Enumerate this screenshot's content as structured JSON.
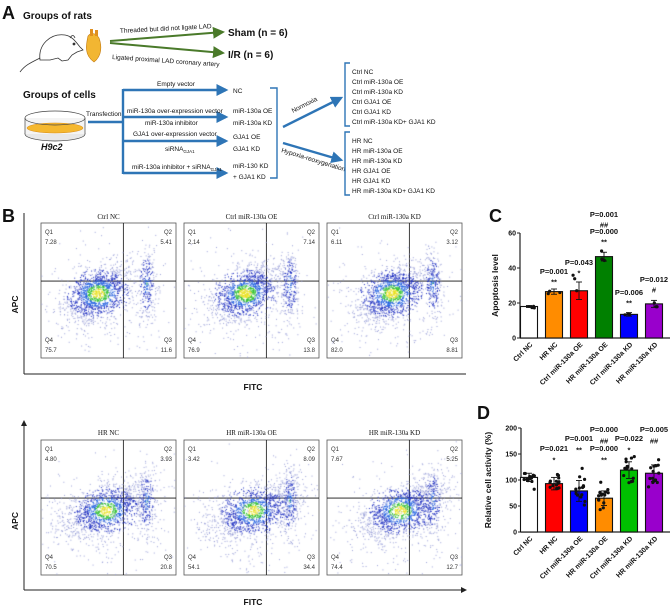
{
  "panel_labels": {
    "a": "A",
    "b": "B",
    "c": "C",
    "d": "D"
  },
  "panel_a": {
    "rats": {
      "title": "Groups of rats",
      "arrow_top": "Threaded but did not ligate LAD",
      "arrow_bottom": "Ligated proximal LAD coronary artery",
      "sham": "Sham (n = 6)",
      "ir": "I/R (n = 6)"
    },
    "cells": {
      "title": "Groups of cells",
      "dish_label": "H9c2",
      "transfection": "Transfection",
      "branches": [
        {
          "above": "Empty vector",
          "targets": [
            "NC"
          ]
        },
        {
          "above": "miR-130a over-expression vector",
          "below": "miR-130a inhibitor",
          "targets": [
            "miR-130a OE",
            "miR-130a KD"
          ]
        },
        {
          "above": "GJA1 over-expression vector",
          "below": "siRNA",
          "below_sub": "GJA1",
          "targets": [
            "GJA1 OE",
            "GJA1 KD"
          ]
        },
        {
          "above": "miR-130a inhibitor + siRNA",
          "above_sub": "GJA1",
          "targets": [
            "miR-130 KD",
            "+ GJA1 KD"
          ]
        }
      ],
      "normoxia": "Normoxia",
      "hypoxia": "Hypoxia-reoxygenation",
      "ctrl_groups": [
        "Ctrl NC",
        "Ctrl miR-130a OE",
        "Ctrl miR-130a KD",
        "Ctrl GJA1 OE",
        "Ctrl GJA1 KD",
        "Ctrl miR-130a KD+ GJA1 KD"
      ],
      "hr_groups": [
        "HR NC",
        "HR miR-130a OE",
        "HR miR-130a KD",
        "HR GJA1 OE",
        "HR GJA1 KD",
        "HR miR-130a KD+ GJA1 KD"
      ]
    },
    "colors": {
      "rat_arrow": "#4a7a2a",
      "cell_arrow": "#2e75b6"
    }
  },
  "panel_b": {
    "y_label": "APC",
    "x_label": "FITC",
    "quadrant_names": [
      "Q1",
      "Q2",
      "Q3",
      "Q4"
    ],
    "rows": [
      {
        "plots": [
          {
            "title": "Ctrl NC",
            "q1": "7.28",
            "q2": "5.41",
            "q3": "11.6",
            "q4": "75.7"
          },
          {
            "title": "Ctrl miR-130a OE",
            "q1": "2.14",
            "q2": "7.14",
            "q3": "13.8",
            "q4": "76.9"
          },
          {
            "title": "Ctrl miR-130a KD",
            "q1": "6.11",
            "q2": "3.12",
            "q3": "8.81",
            "q4": "82.0"
          }
        ]
      },
      {
        "plots": [
          {
            "title": "HR NC",
            "q1": "4.80",
            "q2": "3.93",
            "q3": "20.8",
            "q4": "70.5"
          },
          {
            "title": "HR miR-130a OE",
            "q1": "3.42",
            "q2": "8.09",
            "q3": "34.4",
            "q4": "54.1"
          },
          {
            "title": "HR miR-130a KD",
            "q1": "7.67",
            "q2": "5.25",
            "q3": "12.7",
            "q4": "74.4"
          }
        ]
      }
    ]
  },
  "chart_data": [
    {
      "id": "C",
      "type": "bar",
      "title": "",
      "xlabel": "",
      "ylabel": "Apoptosis level",
      "ylim": [
        0,
        60
      ],
      "yticks": [
        0,
        20,
        40,
        60
      ],
      "categories": [
        "Ctrl NC",
        "HR NC",
        "Ctrl miR-130a OE",
        "HR miR-130a OE",
        "Ctrl miR-130a KD",
        "HR miR-130a KD"
      ],
      "values": [
        18,
        26.5,
        27,
        46.5,
        13.5,
        19.5
      ],
      "errors": [
        0.6,
        1.5,
        5,
        2.5,
        1,
        2
      ],
      "n_points": 3,
      "colors": [
        "#ffffff",
        "#ff8c00",
        "#ff0000",
        "#008000",
        "#0000ff",
        "#9900cc"
      ],
      "annotations": [
        [],
        [
          "P=0.001",
          "**"
        ],
        [
          "P=0.043",
          "*"
        ],
        [
          "P=0.001",
          "##",
          "P=0.000",
          "**"
        ],
        [
          "P=0.006",
          "**"
        ],
        [
          "P=0.012",
          "#"
        ]
      ]
    },
    {
      "id": "D",
      "type": "bar",
      "title": "",
      "xlabel": "",
      "ylabel": "Relative cell activity (%)",
      "ylim": [
        0,
        200
      ],
      "yticks": [
        0,
        50,
        100,
        150,
        200
      ],
      "categories": [
        "Ctrl NC",
        "HR NC",
        "Ctrl miR-130a OE",
        "HR miR-130a OE",
        "Ctrl miR-130a KD",
        "HR miR-130a KD"
      ],
      "values": [
        105,
        93,
        79,
        65,
        119,
        113
      ],
      "errors": [
        8,
        12,
        20,
        14,
        16,
        16
      ],
      "n_points": 15,
      "colors": [
        "#ffffff",
        "#ff0000",
        "#0000ff",
        "#ff8c00",
        "#00c000",
        "#9900cc"
      ],
      "annotations": [
        [],
        [
          "P=0.021",
          "*"
        ],
        [
          "P=0.001",
          "**"
        ],
        [
          "P=0.000",
          "##",
          "P=0.000",
          "**"
        ],
        [
          "P=0.022",
          "*"
        ],
        [
          "P=0.005",
          "##"
        ]
      ]
    }
  ]
}
